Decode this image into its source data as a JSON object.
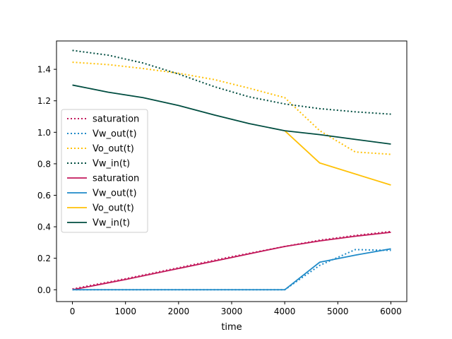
{
  "chart_data": {
    "type": "line",
    "title": "",
    "xlabel": "time",
    "ylabel": "",
    "xlim": [
      -300,
      6300
    ],
    "ylim": [
      -0.075,
      1.58
    ],
    "xticks": [
      0,
      1000,
      2000,
      3000,
      4000,
      5000,
      6000
    ],
    "yticks": [
      0.0,
      0.2,
      0.4,
      0.6,
      0.8,
      1.0,
      1.2,
      1.4
    ],
    "xtick_labels": [
      "0",
      "1000",
      "2000",
      "3000",
      "4000",
      "5000",
      "6000"
    ],
    "ytick_labels": [
      "0.0",
      "0.2",
      "0.4",
      "0.6",
      "0.8",
      "1.0",
      "1.2",
      "1.4"
    ],
    "grid": false,
    "legend_position": "center-left",
    "series": [
      {
        "name": "saturation",
        "style": "dotted",
        "color": "#c2185b",
        "x": [
          0,
          1000,
          2000,
          3000,
          4000,
          4660,
          5330,
          6000
        ],
        "y": [
          0.005,
          0.07,
          0.14,
          0.21,
          0.275,
          0.315,
          0.345,
          0.37
        ]
      },
      {
        "name": "Vw_out(t)",
        "style": "dotted",
        "color": "#1f8ac8",
        "x": [
          0,
          1000,
          2000,
          3000,
          4000,
          4660,
          5330,
          6000
        ],
        "y": [
          0.0,
          0.0,
          0.0,
          0.0,
          0.0,
          0.155,
          0.255,
          0.25
        ]
      },
      {
        "name": "Vo_out(t)",
        "style": "dotted",
        "color": "#ffc107",
        "x": [
          0,
          670,
          1330,
          2000,
          2670,
          3330,
          4000,
          4660,
          5330,
          6000
        ],
        "y": [
          1.445,
          1.43,
          1.405,
          1.375,
          1.335,
          1.28,
          1.22,
          1.01,
          0.875,
          0.86
        ]
      },
      {
        "name": "Vw_in(t)",
        "style": "dotted",
        "color": "#004d40",
        "x": [
          0,
          670,
          1330,
          2000,
          2670,
          3330,
          4000,
          4660,
          5330,
          6000
        ],
        "y": [
          1.52,
          1.49,
          1.44,
          1.37,
          1.29,
          1.225,
          1.18,
          1.15,
          1.13,
          1.115
        ]
      },
      {
        "name": "saturation",
        "style": "solid",
        "color": "#c2185b",
        "x": [
          0,
          1000,
          2000,
          3000,
          4000,
          4660,
          5330,
          6000
        ],
        "y": [
          0.0,
          0.065,
          0.135,
          0.205,
          0.275,
          0.31,
          0.34,
          0.365
        ]
      },
      {
        "name": "Vw_out(t)",
        "style": "solid",
        "color": "#1f8ac8",
        "x": [
          0,
          1000,
          2000,
          3000,
          4000,
          4660,
          5330,
          6000
        ],
        "y": [
          0.0,
          0.0,
          0.0,
          0.0,
          0.0,
          0.175,
          0.22,
          0.26
        ]
      },
      {
        "name": "Vo_out(t)",
        "style": "solid",
        "color": "#ffc107",
        "x": [
          4000,
          4660,
          5330,
          6000
        ],
        "y": [
          1.01,
          0.805,
          0.735,
          0.665
        ]
      },
      {
        "name": "Vw_in(t)",
        "style": "solid",
        "color": "#004d40",
        "x": [
          0,
          670,
          1330,
          2000,
          2670,
          3330,
          4000,
          4660,
          5330,
          6000
        ],
        "y": [
          1.3,
          1.255,
          1.22,
          1.17,
          1.11,
          1.055,
          1.01,
          0.985,
          0.955,
          0.925
        ]
      }
    ]
  }
}
